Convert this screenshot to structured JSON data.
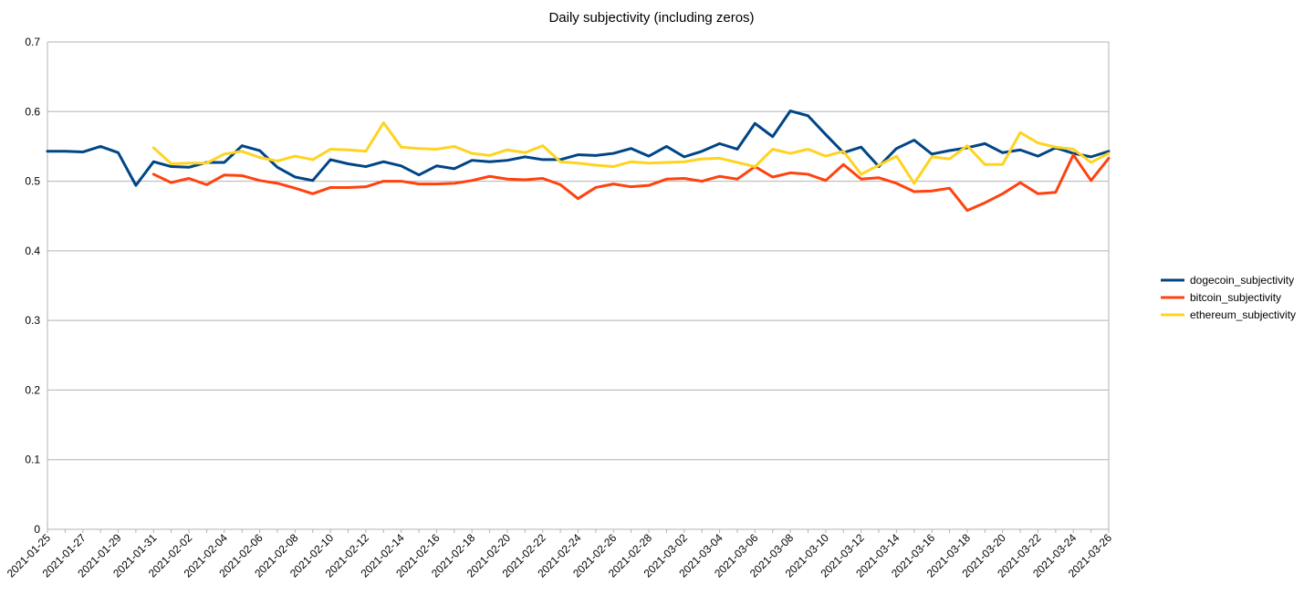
{
  "chart_data": {
    "type": "line",
    "title": "Daily subjectivity (including zeros)",
    "xlabel": "",
    "ylabel": "",
    "ylim": [
      0,
      0.7
    ],
    "yticks": [
      "0",
      "0.1",
      "0.2",
      "0.3",
      "0.4",
      "0.5",
      "0.6",
      "0.7"
    ],
    "grid": true,
    "legend_position": "right",
    "x": [
      "2021-01-25",
      "2021-01-26",
      "2021-01-27",
      "2021-01-28",
      "2021-01-29",
      "2021-01-30",
      "2021-01-31",
      "2021-02-01",
      "2021-02-02",
      "2021-02-03",
      "2021-02-04",
      "2021-02-05",
      "2021-02-06",
      "2021-02-07",
      "2021-02-08",
      "2021-02-09",
      "2021-02-10",
      "2021-02-11",
      "2021-02-12",
      "2021-02-13",
      "2021-02-14",
      "2021-02-15",
      "2021-02-16",
      "2021-02-17",
      "2021-02-18",
      "2021-02-19",
      "2021-02-20",
      "2021-02-21",
      "2021-02-22",
      "2021-02-23",
      "2021-02-24",
      "2021-02-25",
      "2021-02-26",
      "2021-02-27",
      "2021-02-28",
      "2021-03-01",
      "2021-03-02",
      "2021-03-03",
      "2021-03-04",
      "2021-03-05",
      "2021-03-06",
      "2021-03-07",
      "2021-03-08",
      "2021-03-09",
      "2021-03-10",
      "2021-03-11",
      "2021-03-12",
      "2021-03-13",
      "2021-03-14",
      "2021-03-15",
      "2021-03-16",
      "2021-03-17",
      "2021-03-18",
      "2021-03-19",
      "2021-03-20",
      "2021-03-21",
      "2021-03-22",
      "2021-03-23",
      "2021-03-24",
      "2021-03-25",
      "2021-03-26"
    ],
    "xtick_labels": [
      "2021-01-25",
      "2021-01-27",
      "2021-01-29",
      "2021-01-31",
      "2021-02-02",
      "2021-02-04",
      "2021-02-06",
      "2021-02-08",
      "2021-02-10",
      "2021-02-12",
      "2021-02-14",
      "2021-02-16",
      "2021-02-18",
      "2021-02-20",
      "2021-02-22",
      "2021-02-24",
      "2021-02-26",
      "2021-02-28",
      "2021-03-02",
      "2021-03-04",
      "2021-03-06",
      "2021-03-08",
      "2021-03-10",
      "2021-03-12",
      "2021-03-14",
      "2021-03-16",
      "2021-03-18",
      "2021-03-20",
      "2021-03-22",
      "2021-03-24",
      "2021-03-26"
    ],
    "series": [
      {
        "name": "dogecoin_subjectivity",
        "color": "#004586",
        "values": [
          0.543,
          0.543,
          0.542,
          0.55,
          0.541,
          0.494,
          0.528,
          0.521,
          0.52,
          0.527,
          0.527,
          0.551,
          0.544,
          0.52,
          0.506,
          0.501,
          0.531,
          0.525,
          0.521,
          0.528,
          0.522,
          0.509,
          0.522,
          0.518,
          0.53,
          0.528,
          0.53,
          0.535,
          0.531,
          0.531,
          0.538,
          0.537,
          0.54,
          0.547,
          0.536,
          0.55,
          0.535,
          0.543,
          0.554,
          0.546,
          0.583,
          0.564,
          0.601,
          0.594,
          0.567,
          0.541,
          0.549,
          0.521,
          0.547,
          0.559,
          0.539,
          0.544,
          0.548,
          0.554,
          0.541,
          0.545,
          0.536,
          0.548,
          0.54,
          0.535,
          0.543
        ]
      },
      {
        "name": "bitcoin_subjectivity",
        "color": "#ff420e",
        "values": [
          null,
          null,
          null,
          null,
          null,
          null,
          0.51,
          0.498,
          0.504,
          0.495,
          0.509,
          0.508,
          0.501,
          0.497,
          0.49,
          0.482,
          0.491,
          0.491,
          0.492,
          0.5,
          0.5,
          0.496,
          0.496,
          0.497,
          0.501,
          0.507,
          0.503,
          0.502,
          0.504,
          0.495,
          0.475,
          0.491,
          0.496,
          0.492,
          0.494,
          0.503,
          0.504,
          0.5,
          0.507,
          0.503,
          0.521,
          0.506,
          0.512,
          0.51,
          0.501,
          0.524,
          0.503,
          0.505,
          0.497,
          0.485,
          0.486,
          0.49,
          0.458,
          0.469,
          0.482,
          0.498,
          0.482,
          0.484,
          0.538,
          0.501,
          0.533
        ]
      },
      {
        "name": "ethereum_subjectivity",
        "color": "#ffd320",
        "values": [
          null,
          null,
          null,
          null,
          null,
          null,
          0.548,
          0.525,
          0.526,
          0.526,
          0.539,
          0.543,
          0.534,
          0.529,
          0.536,
          0.531,
          0.546,
          0.545,
          0.543,
          0.584,
          0.549,
          0.547,
          0.546,
          0.55,
          0.54,
          0.537,
          0.545,
          0.541,
          0.551,
          0.528,
          0.526,
          0.523,
          0.521,
          0.528,
          0.526,
          0.527,
          0.528,
          0.532,
          0.533,
          0.527,
          0.521,
          0.546,
          0.54,
          0.546,
          0.536,
          0.543,
          0.51,
          0.523,
          0.536,
          0.497,
          0.535,
          0.532,
          0.551,
          0.524,
          0.524,
          0.57,
          0.555,
          0.549,
          0.546,
          0.527,
          0.54
        ]
      }
    ]
  }
}
